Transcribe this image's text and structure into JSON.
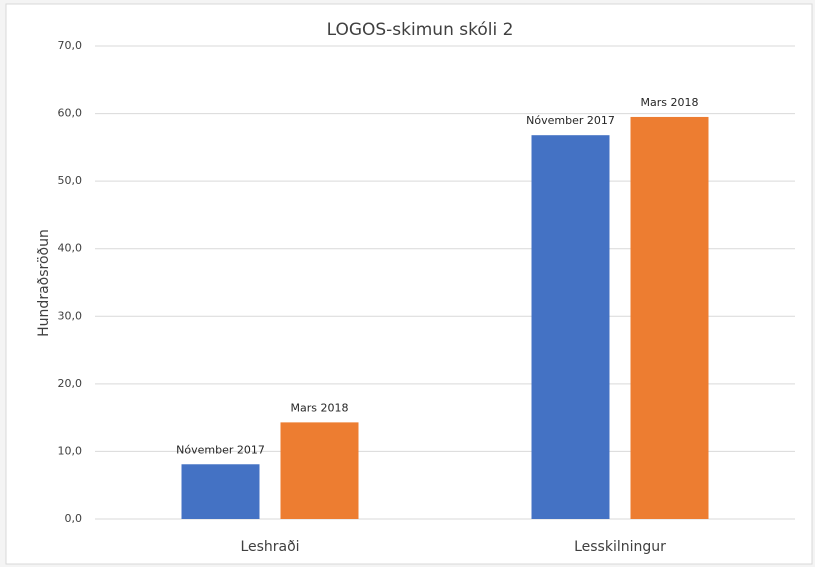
{
  "chart_data": {
    "type": "bar",
    "title": "LOGOS-skimun skóli 2",
    "y_label": "Hundraðsröðun",
    "categories": [
      "Leshraði",
      "Lesskilningur"
    ],
    "series": [
      {
        "name": "Nóvember 2017",
        "color": "#4472c4",
        "values": [
          8.1,
          56.8
        ]
      },
      {
        "name": "Mars 2018",
        "color": "#ed7d31",
        "values": [
          14.3,
          59.5
        ]
      }
    ],
    "ylim": [
      0,
      70
    ],
    "yticks": [
      {
        "value": 0,
        "label": "0,0"
      },
      {
        "value": 10,
        "label": "10,0"
      },
      {
        "value": 20,
        "label": "20,0"
      },
      {
        "value": 30,
        "label": "30,0"
      },
      {
        "value": 40,
        "label": "40,0"
      },
      {
        "value": 50,
        "label": "50,0"
      },
      {
        "value": 60,
        "label": "60,0"
      },
      {
        "value": 70,
        "label": "70,0"
      }
    ],
    "grid": true
  }
}
